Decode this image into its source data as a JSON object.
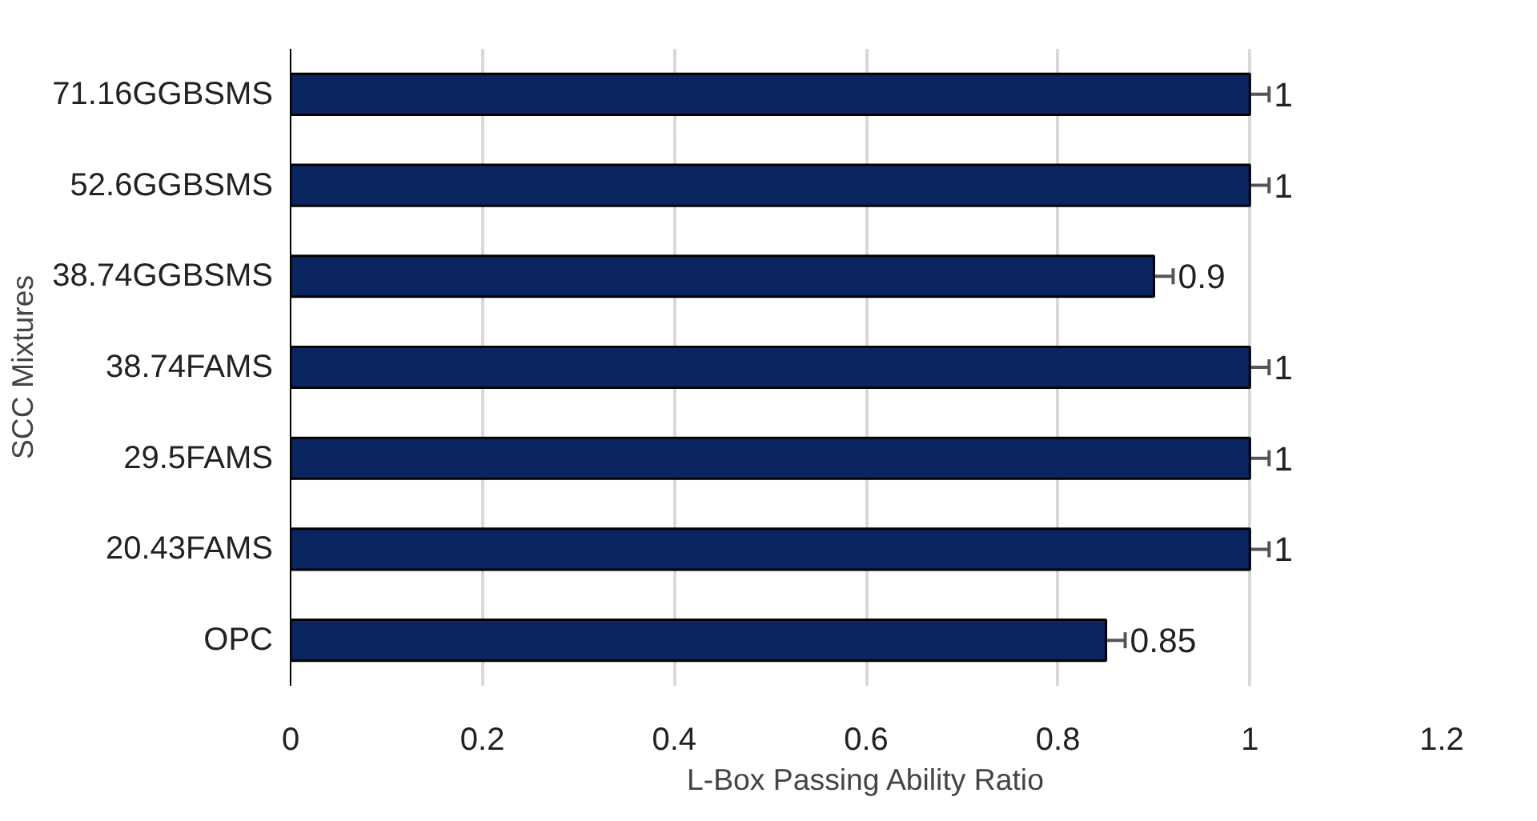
{
  "chart_data": {
    "type": "bar",
    "orientation": "horizontal",
    "xlabel": "L-Box Passing Ability Ratio",
    "ylabel": "SCC Mixtures",
    "categories": [
      "71.16GGBSMS",
      "52.6GGBSMS",
      "38.74GGBSMS",
      "38.74FAMS",
      "29.5FAMS",
      "20.43FAMS",
      "OPC"
    ],
    "values": [
      1,
      1,
      0.9,
      1,
      1,
      1,
      0.85
    ],
    "errors": [
      0.02,
      0.02,
      0.02,
      0.02,
      0.02,
      0.02,
      0.02
    ],
    "color": "#0b2560",
    "data_labels": true,
    "xlim": [
      0,
      1.2
    ],
    "xticks": [
      0,
      0.2,
      0.4,
      0.6,
      0.8,
      1,
      1.2
    ],
    "grid": "x"
  }
}
